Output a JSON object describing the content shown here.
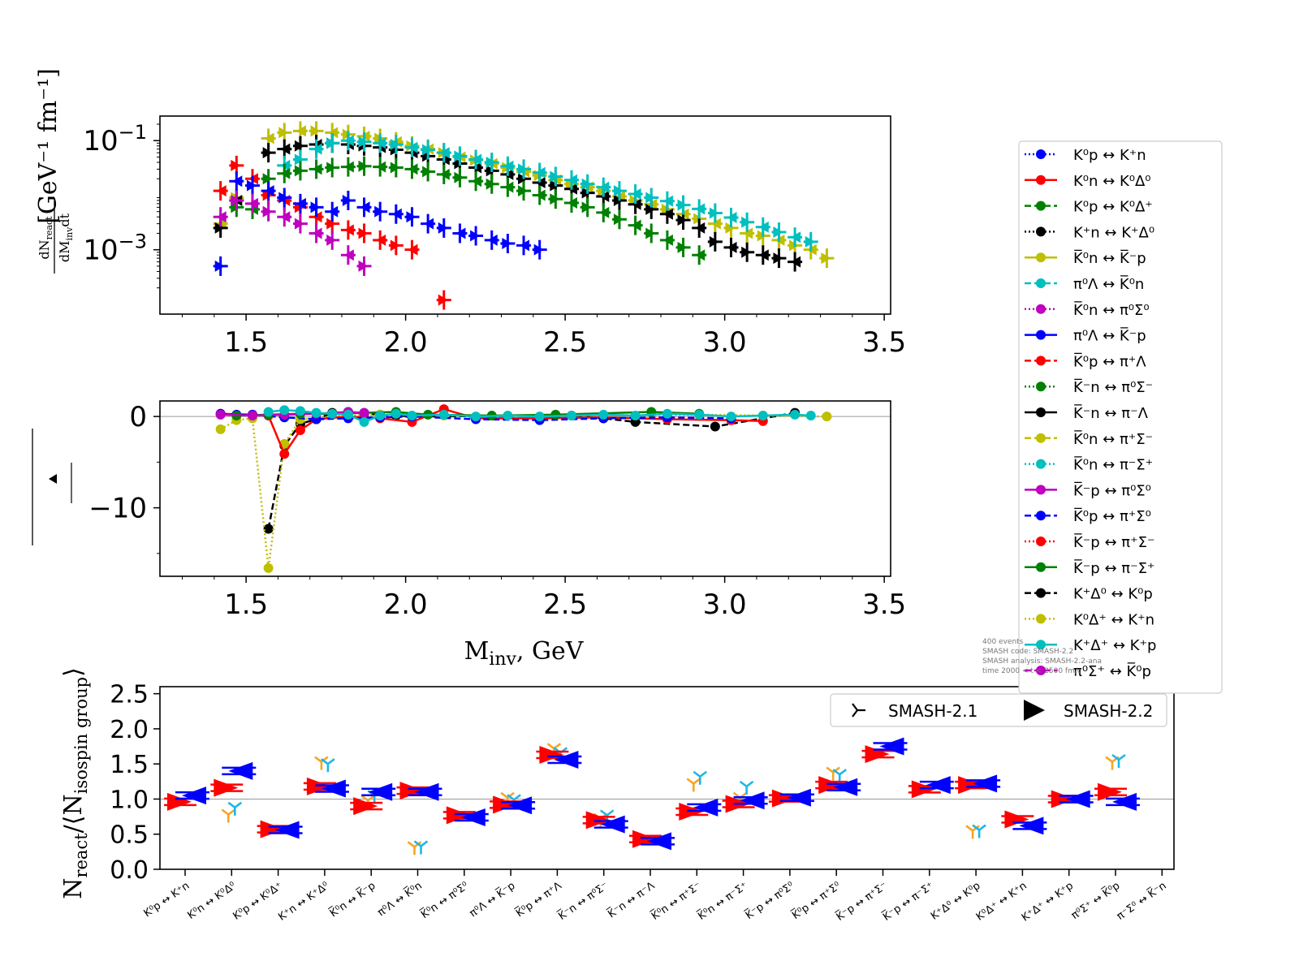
{
  "colors": {
    "black": "#000000",
    "red": "#ff0000",
    "blue": "#0000ff",
    "green": "#008000",
    "olive": "#bfbf00",
    "cyan": "#00bfbf",
    "magenta": "#bf00bf",
    "orange": "#f5a623",
    "lightblue": "#1eb6e8",
    "refline": "#999999"
  },
  "notes": [
    "400 events",
    "SMASH code:      SMASH-2.2",
    "SMASH analysis: SMASH-2.2-ana",
    "time 2000 < t < 2500 fm/c"
  ],
  "legend_main": [
    {
      "label": "K⁰p ↔ K⁺n",
      "color": "#0000ff",
      "dash": "2,3"
    },
    {
      "label": "K⁰n ↔ K⁰Δ⁰",
      "color": "#ff0000",
      "dash": ""
    },
    {
      "label": "K⁰p ↔ K⁰Δ⁺",
      "color": "#008000",
      "dash": "8,4"
    },
    {
      "label": "K⁺n ↔ K⁺Δ⁰",
      "color": "#000000",
      "dash": "2,3"
    },
    {
      "label": "K̅⁰n ↔ K̅⁻p",
      "color": "#bfbf00",
      "dash": ""
    },
    {
      "label": "π⁰Λ ↔ K̅⁰n",
      "color": "#00bfbf",
      "dash": "8,4"
    },
    {
      "label": "K̅⁰n ↔ π⁰Σ⁰",
      "color": "#bf00bf",
      "dash": "2,3"
    },
    {
      "label": "π⁰Λ ↔ K̅⁻p",
      "color": "#0000ff",
      "dash": ""
    },
    {
      "label": "K̅⁰p ↔ π⁺Λ",
      "color": "#ff0000",
      "dash": "8,4"
    },
    {
      "label": "K̅⁻n ↔ π⁰Σ⁻",
      "color": "#008000",
      "dash": "2,3"
    },
    {
      "label": "K̅⁻n ↔ π⁻Λ",
      "color": "#000000",
      "dash": ""
    },
    {
      "label": "K̅⁰n ↔ π⁺Σ⁻",
      "color": "#bfbf00",
      "dash": "8,4"
    },
    {
      "label": "K̅⁰n ↔ π⁻Σ⁺",
      "color": "#00bfbf",
      "dash": "2,3"
    },
    {
      "label": "K̅⁻p ↔ π⁰Σ⁰",
      "color": "#bf00bf",
      "dash": ""
    },
    {
      "label": "K̅⁰p ↔ π⁺Σ⁰",
      "color": "#0000ff",
      "dash": "8,4"
    },
    {
      "label": "K̅⁻p ↔ π⁺Σ⁻",
      "color": "#ff0000",
      "dash": "2,3"
    },
    {
      "label": "K̅⁻p ↔ π⁻Σ⁺",
      "color": "#008000",
      "dash": ""
    },
    {
      "label": "K⁺Δ⁰ ↔ K⁰p",
      "color": "#000000",
      "dash": "8,4"
    },
    {
      "label": "K⁰Δ⁺ ↔ K⁺n",
      "color": "#bfbf00",
      "dash": "2,3"
    },
    {
      "label": "K⁺Δ⁺ ↔ K⁺p",
      "color": "#00bfbf",
      "dash": ""
    },
    {
      "label": "π⁰Σ⁺ ↔ K̅⁰p",
      "color": "#bf00bf",
      "dash": "8,4"
    }
  ],
  "legend_bottom": [
    {
      "label": "SMASH-2.1",
      "marker": "tri"
    },
    {
      "label": "SMASH-2.2",
      "marker": "triangle"
    }
  ],
  "chart_data": [
    {
      "type": "scatter",
      "title": "",
      "xlabel": "",
      "ylabel": "dN_react / dM_inv dt  [GeV⁻¹ fm⁻¹]",
      "ylabel_frac_num": "dN",
      "ylabel_frac_num_sub": "react",
      "ylabel_frac_den": "dM",
      "ylabel_frac_den_sub": "inv",
      "ylabel_frac_den_tail": "dt",
      "ylabel_units": "[GeV⁻¹ fm⁻¹]",
      "yscale": "log",
      "xlim": [
        1.23,
        3.52
      ],
      "ylim_exp": [
        -4.18,
        -0.55
      ],
      "xticks": [
        "1.5",
        "2.0",
        "2.5",
        "3.0",
        "3.5"
      ],
      "xtick_values": [
        1.5,
        2.0,
        2.5,
        3.0,
        3.5
      ],
      "yticks": [
        {
          "base": "10",
          "exp": "−1",
          "exp_value": -1
        },
        {
          "base": "10",
          "exp": "−3",
          "exp_value": -3
        }
      ],
      "series": [
        {
          "color": "#bfbf00",
          "x": [
            1.42,
            1.47,
            1.57,
            1.62,
            1.67,
            1.72,
            1.77,
            1.82,
            1.87,
            1.92,
            1.97,
            2.02,
            2.07,
            2.12,
            2.17,
            2.22,
            2.27,
            2.32,
            2.37,
            2.42,
            2.47,
            2.52,
            2.57,
            2.62,
            2.67,
            2.72,
            2.77,
            2.82,
            2.87,
            2.92,
            2.97,
            3.02,
            3.07,
            3.12,
            3.17,
            3.22,
            3.27,
            3.32
          ],
          "y": [
            0.003,
            0.009,
            0.11,
            0.14,
            0.15,
            0.15,
            0.14,
            0.13,
            0.12,
            0.11,
            0.095,
            0.08,
            0.07,
            0.06,
            0.05,
            0.044,
            0.038,
            0.032,
            0.027,
            0.023,
            0.019,
            0.016,
            0.014,
            0.012,
            0.0095,
            0.008,
            0.0068,
            0.0055,
            0.0045,
            0.0037,
            0.003,
            0.0025,
            0.002,
            0.0018,
            0.0015,
            0.0012,
            0.001,
            0.0007
          ]
        },
        {
          "color": "#000000",
          "x": [
            1.42,
            1.47,
            1.57,
            1.62,
            1.67,
            1.72,
            1.77,
            1.82,
            1.87,
            1.92,
            1.97,
            2.02,
            2.07,
            2.12,
            2.17,
            2.22,
            2.27,
            2.32,
            2.37,
            2.42,
            2.47,
            2.52,
            2.57,
            2.62,
            2.67,
            2.72,
            2.77,
            2.82,
            2.87,
            2.92,
            2.97,
            3.02,
            3.07,
            3.12,
            3.17,
            3.22
          ],
          "y": [
            0.0025,
            0.008,
            0.06,
            0.07,
            0.08,
            0.085,
            0.09,
            0.085,
            0.08,
            0.075,
            0.068,
            0.06,
            0.052,
            0.045,
            0.038,
            0.032,
            0.028,
            0.024,
            0.02,
            0.017,
            0.015,
            0.013,
            0.011,
            0.0095,
            0.008,
            0.0068,
            0.0055,
            0.0045,
            0.0035,
            0.0025,
            0.0014,
            0.0011,
            0.0009,
            0.0008,
            0.0007,
            0.0006
          ]
        },
        {
          "color": "#00bfbf",
          "x": [
            1.62,
            1.67,
            1.72,
            1.77,
            1.82,
            1.87,
            1.92,
            1.97,
            2.02,
            2.07,
            2.12,
            2.17,
            2.22,
            2.27,
            2.32,
            2.37,
            2.42,
            2.47,
            2.52,
            2.57,
            2.62,
            2.67,
            2.72,
            2.77,
            2.82,
            2.87,
            2.92,
            2.97,
            3.02,
            3.07,
            3.12,
            3.17,
            3.22,
            3.27
          ],
          "y": [
            0.035,
            0.045,
            0.07,
            0.09,
            0.1,
            0.095,
            0.09,
            0.085,
            0.075,
            0.068,
            0.06,
            0.052,
            0.045,
            0.04,
            0.034,
            0.03,
            0.026,
            0.022,
            0.019,
            0.016,
            0.014,
            0.012,
            0.0105,
            0.009,
            0.0078,
            0.0066,
            0.0056,
            0.0047,
            0.0039,
            0.0032,
            0.0026,
            0.0021,
            0.0017,
            0.0014
          ]
        },
        {
          "color": "#008000",
          "x": [
            1.47,
            1.52,
            1.57,
            1.62,
            1.67,
            1.72,
            1.77,
            1.82,
            1.87,
            1.92,
            1.97,
            2.02,
            2.07,
            2.12,
            2.17,
            2.22,
            2.27,
            2.32,
            2.37,
            2.42,
            2.47,
            2.52,
            2.57,
            2.62,
            2.67,
            2.72,
            2.77,
            2.82,
            2.87,
            2.92
          ],
          "y": [
            0.006,
            0.0055,
            0.02,
            0.025,
            0.028,
            0.03,
            0.032,
            0.033,
            0.034,
            0.033,
            0.032,
            0.03,
            0.027,
            0.024,
            0.021,
            0.018,
            0.016,
            0.014,
            0.012,
            0.01,
            0.0085,
            0.0072,
            0.006,
            0.0048,
            0.0036,
            0.0028,
            0.002,
            0.0015,
            0.0011,
            0.0008
          ]
        },
        {
          "color": "#ff0000",
          "x": [
            1.42,
            1.47,
            1.52,
            1.57,
            1.62,
            1.67,
            1.72,
            1.77,
            1.82,
            1.87,
            1.92,
            1.97,
            2.02,
            2.12
          ],
          "y": [
            0.012,
            0.035,
            0.02,
            0.01,
            0.008,
            0.006,
            0.004,
            0.003,
            0.0023,
            0.002,
            0.0015,
            0.0012,
            0.001,
            0.00012
          ]
        },
        {
          "color": "#0000ff",
          "x": [
            1.42,
            1.47,
            1.52,
            1.57,
            1.62,
            1.67,
            1.72,
            1.77,
            1.82,
            1.87,
            1.92,
            1.97,
            2.02,
            2.07,
            2.12,
            2.17,
            2.22,
            2.27,
            2.32,
            2.37,
            2.42
          ],
          "y": [
            0.0005,
            0.018,
            0.015,
            0.012,
            0.009,
            0.007,
            0.006,
            0.005,
            0.008,
            0.006,
            0.005,
            0.0045,
            0.004,
            0.003,
            0.0025,
            0.002,
            0.0018,
            0.0015,
            0.0013,
            0.0012,
            0.001
          ]
        },
        {
          "color": "#bf00bf",
          "x": [
            1.42,
            1.47,
            1.52,
            1.57,
            1.62,
            1.67,
            1.72,
            1.77,
            1.82,
            1.87
          ],
          "y": [
            0.004,
            0.008,
            0.007,
            0.005,
            0.004,
            0.003,
            0.002,
            0.0015,
            0.0008,
            0.0005
          ]
        }
      ]
    },
    {
      "type": "line",
      "title": "",
      "xlabel": "M_inv, GeV",
      "xlabel_main": "M",
      "xlabel_sub": "inv",
      "xlabel_tail": ", GeV",
      "ylabel": "",
      "xlim": [
        1.23,
        3.52
      ],
      "ylim": [
        -17.5,
        1.7
      ],
      "xticks": [
        "1.5",
        "2.0",
        "2.5",
        "3.0",
        "3.5"
      ],
      "xtick_values": [
        1.5,
        2.0,
        2.5,
        3.0,
        3.5
      ],
      "yticks": [
        "0",
        "−10"
      ],
      "ytick_values": [
        0,
        -10
      ],
      "series": [
        {
          "color": "#000000",
          "dash": "8,4",
          "x": [
            1.57,
            1.62,
            1.67,
            1.72,
            1.77,
            1.82,
            1.87,
            1.92,
            1.97,
            2.02,
            2.52,
            2.62,
            2.72,
            2.97,
            3.22
          ],
          "y": [
            -12.3,
            -3.2,
            -0.8,
            -0.3,
            0.4,
            0.5,
            0.3,
            0.2,
            0.1,
            0.0,
            0.1,
            -0.2,
            -0.6,
            -1.1,
            0.4
          ]
        },
        {
          "color": "#bfbf00",
          "dash": "2,3",
          "x": [
            1.42,
            1.47,
            1.52,
            1.57,
            1.62,
            1.67,
            1.72,
            1.82,
            1.92,
            2.12,
            2.52,
            2.92,
            3.12,
            3.32
          ],
          "y": [
            -1.4,
            -0.4,
            -0.2,
            -16.6,
            -3.0,
            -0.3,
            -0.2,
            0.1,
            0.2,
            0.1,
            0.1,
            0.2,
            0.1,
            0.0
          ]
        },
        {
          "color": "#ff0000",
          "dash": "",
          "x": [
            1.42,
            1.52,
            1.57,
            1.62,
            1.67,
            1.72,
            1.82,
            1.92,
            2.02,
            2.12,
            2.22,
            2.42,
            2.62,
            2.82,
            3.02,
            3.12
          ],
          "y": [
            0.3,
            0.2,
            0.1,
            -4.1,
            -1.5,
            -0.3,
            0.0,
            -0.2,
            -0.6,
            0.8,
            -0.2,
            -0.2,
            -0.1,
            -0.3,
            -0.4,
            -0.5
          ]
        },
        {
          "color": "#0000ff",
          "dash": "8,4",
          "x": [
            1.42,
            1.47,
            1.52,
            1.62,
            1.72,
            1.82,
            1.92,
            2.02,
            2.22,
            2.42,
            2.62,
            2.82,
            3.02
          ],
          "y": [
            0.3,
            0.2,
            0.2,
            -0.1,
            -0.3,
            -0.2,
            -0.1,
            0.0,
            -0.3,
            -0.4,
            -0.2,
            -0.1,
            -0.2
          ]
        },
        {
          "color": "#008000",
          "dash": "",
          "x": [
            1.47,
            1.57,
            1.67,
            1.77,
            1.87,
            1.97,
            2.07,
            2.27,
            2.47,
            2.77,
            2.92
          ],
          "y": [
            0.1,
            0.2,
            0.3,
            0.3,
            0.4,
            0.5,
            0.2,
            0.1,
            0.2,
            0.5,
            0.3
          ]
        },
        {
          "color": "#bf00bf",
          "dash": "",
          "x": [
            1.42,
            1.52,
            1.62,
            1.72,
            1.82,
            1.87
          ],
          "y": [
            0.2,
            0.1,
            0.2,
            0.3,
            0.5,
            0.4
          ]
        },
        {
          "color": "#00bfbf",
          "dash": "",
          "x": [
            1.57,
            1.62,
            1.67,
            1.72,
            1.77,
            1.82,
            1.87,
            1.92,
            1.97,
            2.02,
            2.12,
            2.22,
            2.32,
            2.42,
            2.52,
            2.62,
            2.72,
            2.82,
            2.92,
            3.02,
            3.12,
            3.22,
            3.27
          ],
          "y": [
            0.5,
            0.7,
            0.6,
            0.4,
            0.3,
            0.2,
            -0.6,
            0.1,
            0.3,
            0.1,
            0.2,
            0.0,
            0.1,
            0.0,
            0.1,
            0.2,
            0.1,
            0.3,
            0.2,
            0.0,
            0.1,
            0.2,
            0.1
          ]
        }
      ]
    },
    {
      "type": "scatter",
      "title": "",
      "xlabel": "",
      "ylabel": "N_react/⟨N_isospin group⟩",
      "ylabel_main": "N",
      "ylabel_sub1": "react",
      "ylabel_mid": "/⟨N",
      "ylabel_sub2": "isospin group",
      "ylabel_end": "⟩",
      "ylim": [
        0.0,
        2.6
      ],
      "yticks": [
        "0.0",
        "0.5",
        "1.0",
        "1.5",
        "2.0",
        "2.5"
      ],
      "ytick_values": [
        0.0,
        0.5,
        1.0,
        1.5,
        2.0,
        2.5
      ],
      "reference_line": 1.0,
      "categories": [
        "K⁰p ↔ K⁺n",
        "K⁰n ↔ K⁰Δ⁰",
        "K⁰p ↔ K⁰Δ⁺",
        "K⁺n ↔ K⁺Δ⁰",
        "K̅⁰n ↔ K̅⁻p",
        "π⁰Λ ↔ K̅⁰n",
        "K̅⁰n ↔ π⁰Σ⁰",
        "π⁰Λ ↔ K̅⁻p",
        "K̅⁰p ↔ π⁺Λ",
        "K̅⁻n ↔ π⁰Σ⁻",
        "K̅⁻n ↔ π⁻Λ",
        "K̅⁰n ↔ π⁺Σ⁻",
        "K̅⁰n ↔ π⁻Σ⁺",
        "K̅⁻p ↔ π⁰Σ⁰",
        "K̅⁰p ↔ π⁺Σ⁰",
        "K̅⁻p ↔ π⁺Σ⁻",
        "K̅⁻p ↔ π⁻Σ⁺",
        "K⁺Δ⁰ ↔ K⁰p",
        "K⁰Δ⁺ ↔ K⁺n",
        "K⁺Δ⁺ ↔ K⁺p",
        "π⁰Σ⁺ ↔ K̅⁰p",
        "π⁻Σ⁰ ↔ K̅⁻n"
      ],
      "series": [
        {
          "name": "SMASH-2.1",
          "color_a": "#f5a623",
          "color_b": "#1eb6e8",
          "a": [
            null,
            0.78,
            null,
            1.53,
            0.98,
            0.32,
            null,
            1.02,
            1.72,
            0.72,
            null,
            1.22,
            1.02,
            null,
            1.38,
            null,
            null,
            0.55,
            null,
            null,
            1.53,
            null
          ],
          "b": [
            null,
            0.88,
            null,
            1.5,
            1.05,
            0.33,
            null,
            0.99,
            1.66,
            0.77,
            null,
            1.32,
            1.18,
            null,
            1.35,
            null,
            null,
            0.56,
            null,
            null,
            1.56,
            null
          ]
        },
        {
          "name": "SMASH-2.2",
          "color_a": "#ff0000",
          "color_b": "#0000ff",
          "a": [
            0.96,
            1.16,
            0.57,
            1.18,
            0.9,
            1.12,
            0.77,
            0.92,
            1.63,
            0.7,
            0.43,
            0.82,
            0.93,
            1.01,
            1.2,
            1.64,
            1.14,
            1.2,
            0.71,
            1.0,
            1.1,
            null
          ],
          "b": [
            1.05,
            1.4,
            0.56,
            1.15,
            1.1,
            1.1,
            0.74,
            0.91,
            1.56,
            0.64,
            0.4,
            0.88,
            0.98,
            1.02,
            1.17,
            1.75,
            1.2,
            1.22,
            0.62,
            1.0,
            0.96,
            null
          ]
        }
      ]
    }
  ]
}
